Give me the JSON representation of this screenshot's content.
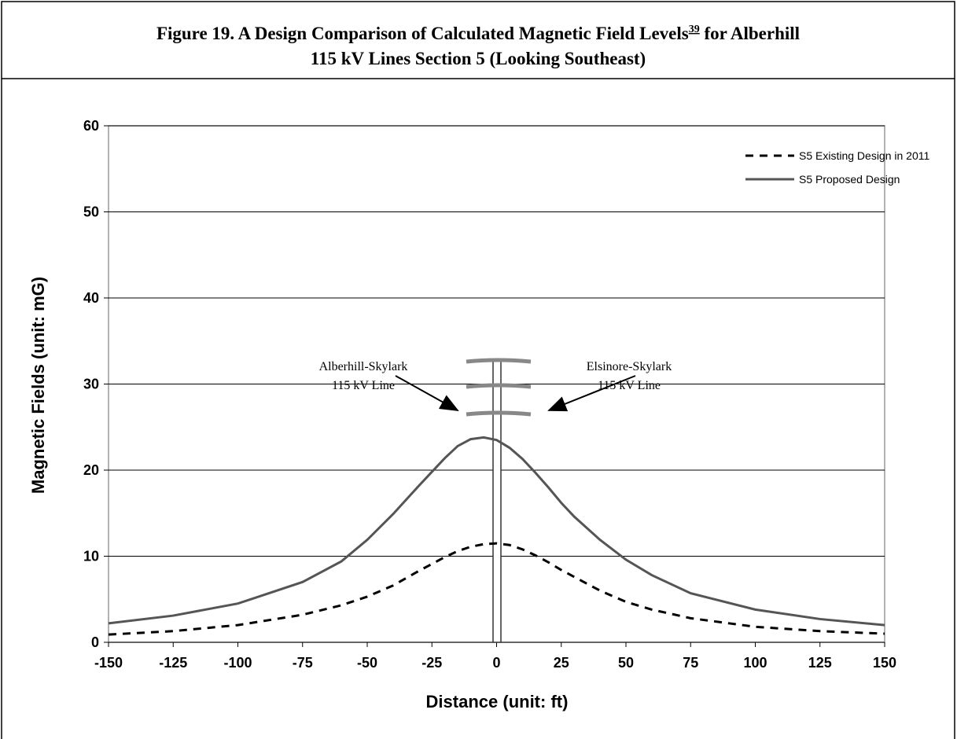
{
  "chart_data": {
    "type": "line",
    "title": {
      "line1": "Figure 19. A Design Comparison of Calculated Magnetic Field Levels",
      "footnote": "39",
      "line1_end": " for Alberhill",
      "line2": "115 kV Lines Section 5 (Looking Southeast)"
    },
    "x_label": "Distance (unit: ft)",
    "y_label": "Magnetic Fields (unit: mG)",
    "x": [
      -150,
      -125,
      -100,
      -75,
      -60,
      -50,
      -40,
      -30,
      -25,
      -20,
      -15,
      -10,
      -5,
      0,
      5,
      10,
      15,
      20,
      25,
      30,
      40,
      50,
      60,
      75,
      100,
      125,
      150
    ],
    "series": [
      {
        "name": "S5 Existing Design in 2011",
        "color": "#000000",
        "dash": true,
        "values": [
          0.9,
          1.3,
          2.0,
          3.2,
          4.3,
          5.3,
          6.6,
          8.3,
          9.1,
          9.9,
          10.6,
          11.1,
          11.4,
          11.5,
          11.3,
          10.8,
          10.1,
          9.3,
          8.4,
          7.6,
          6.0,
          4.7,
          3.8,
          2.8,
          1.8,
          1.3,
          1.0
        ]
      },
      {
        "name": "S5 Proposed Design",
        "color": "#555555",
        "dash": false,
        "values": [
          2.2,
          3.1,
          4.5,
          7.0,
          9.4,
          11.9,
          14.9,
          18.2,
          19.8,
          21.4,
          22.8,
          23.6,
          23.8,
          23.5,
          22.6,
          21.3,
          19.7,
          18.0,
          16.2,
          14.6,
          11.9,
          9.6,
          7.8,
          5.7,
          3.8,
          2.7,
          2.0
        ]
      }
    ],
    "xlim": [
      -150,
      150
    ],
    "xticks": [
      -150,
      -125,
      -100,
      -75,
      -50,
      -25,
      0,
      25,
      50,
      75,
      100,
      125,
      150
    ],
    "ylim": [
      0,
      60
    ],
    "yticks": [
      0,
      10,
      20,
      30,
      40,
      50,
      60
    ],
    "grid": true,
    "legend": "top-right",
    "annotations": [
      {
        "lines": [
          "Alberhill-Skylark",
          "115 kV Line"
        ]
      },
      {
        "lines": [
          "Elsinore-Skylark",
          "115 kV Line"
        ]
      }
    ]
  }
}
